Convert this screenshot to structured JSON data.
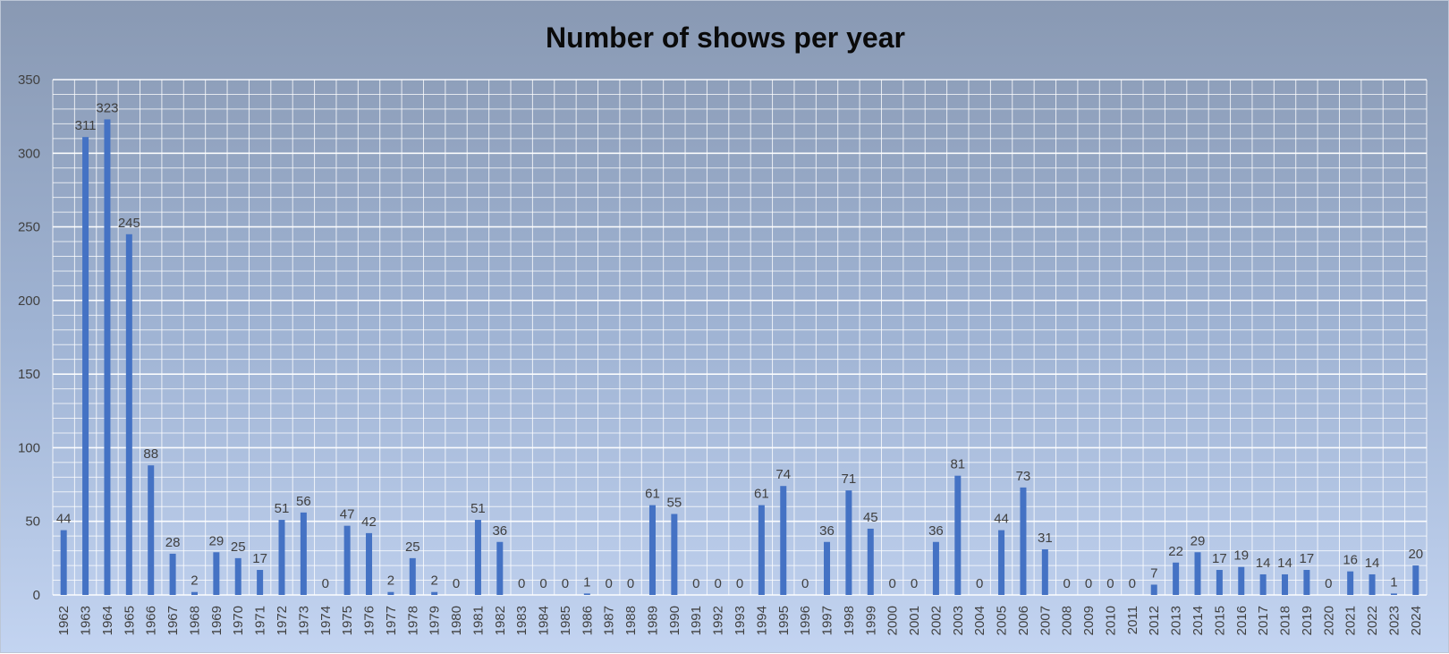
{
  "chart_data": {
    "type": "bar",
    "title": "Number of shows per year",
    "xlabel": "",
    "ylabel": "",
    "ylim": [
      0,
      350
    ],
    "y_ticks": [
      0,
      50,
      100,
      150,
      200,
      250,
      300,
      350
    ],
    "grid": true,
    "legend": "none",
    "bar_color": "#4472c4",
    "categories": [
      "1962",
      "1963",
      "1964",
      "1965",
      "1966",
      "1967",
      "1968",
      "1969",
      "1970",
      "1971",
      "1972",
      "1973",
      "1974",
      "1975",
      "1976",
      "1977",
      "1978",
      "1979",
      "1980",
      "1981",
      "1982",
      "1983",
      "1984",
      "1985",
      "1986",
      "1987",
      "1988",
      "1989",
      "1990",
      "1991",
      "1992",
      "1993",
      "1994",
      "1995",
      "1996",
      "1997",
      "1998",
      "1999",
      "2000",
      "2001",
      "2002",
      "2003",
      "2004",
      "2005",
      "2006",
      "2007",
      "2008",
      "2009",
      "2010",
      "2011",
      "2012",
      "2013",
      "2014",
      "2015",
      "2016",
      "2017",
      "2018",
      "2019",
      "2020",
      "2021",
      "2022",
      "2023",
      "2024"
    ],
    "values": [
      44,
      311,
      323,
      245,
      88,
      28,
      2,
      29,
      25,
      17,
      51,
      56,
      0,
      47,
      42,
      2,
      25,
      2,
      0,
      51,
      36,
      0,
      0,
      0,
      1,
      0,
      0,
      61,
      55,
      0,
      0,
      0,
      61,
      74,
      0,
      36,
      71,
      45,
      0,
      0,
      36,
      81,
      0,
      44,
      73,
      31,
      0,
      0,
      0,
      0,
      7,
      22,
      29,
      17,
      19,
      14,
      14,
      17,
      0,
      16,
      14,
      1,
      20
    ]
  }
}
